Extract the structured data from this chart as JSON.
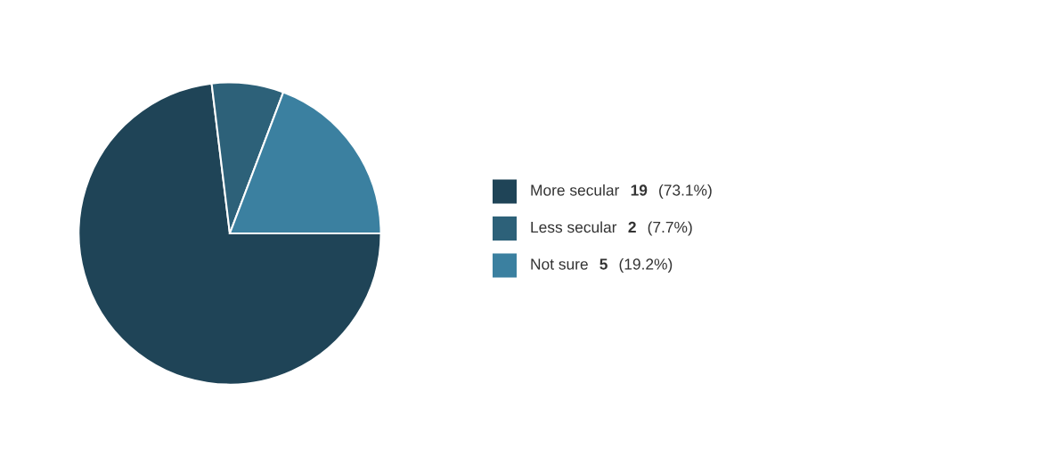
{
  "chart_data": {
    "type": "pie",
    "categories": [
      "More secular",
      "Less secular",
      "Not sure"
    ],
    "values": [
      19,
      2,
      5
    ],
    "colors": [
      "#1f4457",
      "#2d6179",
      "#3b80a0"
    ],
    "value_labels": [
      "19 (73.1%)",
      "2 (7.7%)",
      "5 (19.2%)"
    ],
    "legend": "right"
  }
}
